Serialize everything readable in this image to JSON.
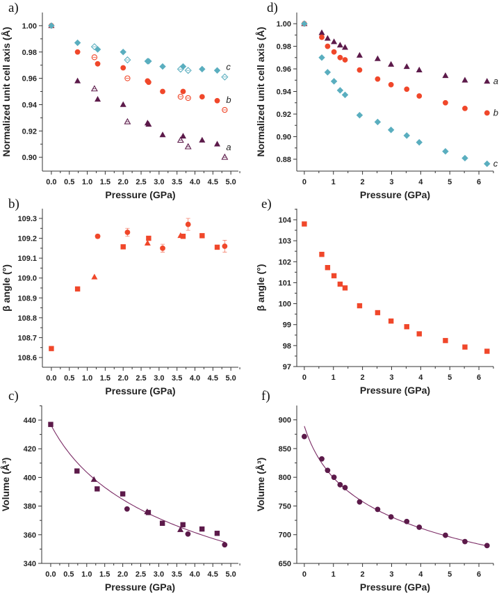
{
  "colors": {
    "a": "#5c1a4a",
    "b": "#f0472a",
    "c": "#5aaebf",
    "fit": "#7a2a64"
  },
  "chart_data": [
    {
      "id": "a",
      "panel_label": "a)",
      "type": "scatter",
      "xlabel": "Pressure (GPa)",
      "ylabel": "Normalized unit cell axis (Å)",
      "xlim": [
        -0.25,
        5.21
      ],
      "ylim": [
        0.8895,
        1.01
      ],
      "xticks": [
        "0.0",
        "0.5",
        "1.0",
        "1.5",
        "2.0",
        "2.5",
        "3.0",
        "3.5",
        "4.0",
        "4.5",
        "5.0"
      ],
      "yticks": [
        "0.90",
        "0.92",
        "0.94",
        "0.96",
        "0.98",
        "1.00"
      ],
      "x": [
        0,
        0.73,
        1.2,
        1.29,
        2.0,
        2.12,
        2.68,
        2.71,
        3.1,
        3.6,
        3.67,
        3.81,
        4.2,
        4.62,
        4.83
      ],
      "open_points": [
        2,
        5,
        9,
        11,
        14
      ],
      "series": [
        {
          "name": "a",
          "marker": "triangle",
          "color_key": "a",
          "values": [
            1.0,
            0.958,
            0.952,
            0.944,
            0.94,
            0.927,
            0.926,
            0.925,
            0.917,
            0.913,
            0.916,
            0.908,
            0.913,
            0.91,
            0.9
          ]
        },
        {
          "name": "b",
          "marker": "circle",
          "color_key": "b",
          "values": [
            1.0,
            0.98,
            0.976,
            0.971,
            0.968,
            0.96,
            0.958,
            0.957,
            0.95,
            0.946,
            0.95,
            0.945,
            0.946,
            0.943,
            0.936
          ]
        },
        {
          "name": "c",
          "marker": "diamond",
          "color_key": "c",
          "values": [
            1.0,
            0.987,
            0.984,
            0.982,
            0.98,
            0.974,
            0.973,
            0.973,
            0.969,
            0.967,
            0.969,
            0.966,
            0.967,
            0.966,
            0.961
          ]
        }
      ]
    },
    {
      "id": "d",
      "panel_label": "d)",
      "type": "scatter",
      "xlabel": "Pressure (GPa)",
      "ylabel": "Normalized unit cell axis (Å)",
      "xlim": [
        -0.26,
        6.5
      ],
      "ylim": [
        0.8695,
        1.0099
      ],
      "xticks": [
        "0",
        "1",
        "2",
        "3",
        "4",
        "5",
        "6"
      ],
      "yticks": [
        "0.88",
        "0.90",
        "0.92",
        "0.94",
        "0.96",
        "0.98",
        "1.00"
      ],
      "x": [
        0,
        0.6,
        0.8,
        1.02,
        1.23,
        1.4,
        1.9,
        2.52,
        2.98,
        3.52,
        3.95,
        4.85,
        5.52,
        6.28
      ],
      "open_points": [],
      "series": [
        {
          "name": "a",
          "marker": "triangle",
          "color_key": "a",
          "values": [
            1.0,
            0.992,
            0.987,
            0.984,
            0.981,
            0.979,
            0.972,
            0.969,
            0.964,
            0.962,
            0.959,
            0.954,
            0.95,
            0.949
          ]
        },
        {
          "name": "b",
          "marker": "circle",
          "color_key": "b",
          "values": [
            1.0,
            0.988,
            0.98,
            0.975,
            0.97,
            0.968,
            0.959,
            0.951,
            0.946,
            0.942,
            0.936,
            0.93,
            0.925,
            0.921
          ]
        },
        {
          "name": "c",
          "marker": "diamond",
          "color_key": "c",
          "values": [
            1.0,
            0.97,
            0.957,
            0.949,
            0.941,
            0.937,
            0.919,
            0.913,
            0.906,
            0.901,
            0.895,
            0.887,
            0.881,
            0.876
          ]
        }
      ]
    },
    {
      "id": "b",
      "panel_label": "b)",
      "type": "scatter",
      "xlabel": "Pressure (GPa)",
      "ylabel": "β angle (°)",
      "xlim": [
        -0.25,
        5.21
      ],
      "ylim": [
        108.551,
        109.349
      ],
      "xticks": [
        "0.0",
        "0.5",
        "1.0",
        "1.5",
        "2.0",
        "2.5",
        "3.0",
        "3.5",
        "4.0",
        "4.5",
        "5.0"
      ],
      "yticks": [
        "108.6",
        "108.7",
        "108.8",
        "108.9",
        "109.0",
        "109.1",
        "109.2",
        "109.3"
      ],
      "x": [
        0,
        0.73,
        1.2,
        1.29,
        2.0,
        2.12,
        2.68,
        2.71,
        3.1,
        3.6,
        3.67,
        3.81,
        4.2,
        4.62,
        4.83
      ],
      "open_points": [],
      "series": [
        {
          "name": "beta",
          "color_key": "b",
          "markers": [
            "square",
            "square",
            "triangle",
            "circle",
            "square",
            "circle",
            "triangle",
            "square",
            "circle",
            "triangle",
            "square",
            "circle",
            "square",
            "square",
            "circle"
          ],
          "values": [
            108.645,
            108.945,
            109.005,
            109.21,
            109.157,
            109.23,
            109.175,
            109.2,
            109.15,
            109.213,
            109.21,
            109.27,
            109.213,
            109.155,
            109.16
          ],
          "errors": [
            0,
            0,
            0,
            0.01,
            0,
            0.02,
            0,
            0,
            0.02,
            0,
            0,
            0.03,
            0,
            0,
            0.03
          ]
        }
      ]
    },
    {
      "id": "e",
      "panel_label": "e)",
      "type": "scatter",
      "xlabel": "Pressure (GPa)",
      "ylabel": "β angle (°)",
      "xlim": [
        -0.26,
        6.5
      ],
      "ylim": [
        97,
        104.53
      ],
      "xticks": [
        "0",
        "1",
        "2",
        "3",
        "4",
        "5",
        "6"
      ],
      "yticks": [
        "97",
        "98",
        "99",
        "100",
        "101",
        "102",
        "103",
        "104"
      ],
      "x": [
        0,
        0.6,
        0.8,
        1.02,
        1.23,
        1.4,
        1.9,
        2.52,
        2.98,
        3.52,
        3.95,
        4.85,
        5.52,
        6.28
      ],
      "open_points": [],
      "series": [
        {
          "name": "beta",
          "marker": "square",
          "color_key": "b",
          "values": [
            103.8,
            102.35,
            101.72,
            101.33,
            100.93,
            100.75,
            99.9,
            99.57,
            99.17,
            98.9,
            98.56,
            98.24,
            97.93,
            97.73
          ]
        }
      ]
    },
    {
      "id": "c",
      "panel_label": "c)",
      "type": "scatter",
      "xlabel": "Pressure (GPa)",
      "ylabel": "Volume (Å³)",
      "xlim": [
        -0.25,
        5.21
      ],
      "ylim": [
        340,
        450.2
      ],
      "xticks": [
        "0.0",
        "0.5",
        "1.0",
        "1.5",
        "2.0",
        "2.5",
        "3.0",
        "3.5",
        "4.0",
        "4.5",
        "5.0"
      ],
      "yticks": [
        "340",
        "360",
        "380",
        "400",
        "420",
        "440"
      ],
      "x": [
        0,
        0.73,
        1.2,
        1.29,
        2.0,
        2.12,
        2.68,
        2.71,
        3.1,
        3.6,
        3.67,
        3.81,
        4.2,
        4.62,
        4.83
      ],
      "open_points": [],
      "series": [
        {
          "name": "V",
          "color_key": "a",
          "markers": [
            "square",
            "square",
            "triangle",
            "square",
            "square",
            "circle",
            "triangle",
            "square",
            "square",
            "triangle",
            "square",
            "circle",
            "square",
            "square",
            "circle"
          ],
          "values": [
            437,
            404.5,
            398.5,
            392,
            388.5,
            378,
            376,
            375.5,
            368,
            363.5,
            367,
            360.5,
            364,
            361,
            353
          ]
        }
      ],
      "fit": {
        "model": "murnaghan",
        "V0": 437,
        "K0": 9.0,
        "Kp": 8,
        "xrange": [
          0,
          4.85
        ]
      }
    },
    {
      "id": "f",
      "panel_label": "f)",
      "type": "scatter",
      "xlabel": "Pressure (GPa)",
      "ylabel": "Volume (Å³)",
      "xlim": [
        -0.26,
        6.5
      ],
      "ylim": [
        650,
        925
      ],
      "xticks": [
        "0",
        "1",
        "2",
        "3",
        "4",
        "5",
        "6"
      ],
      "yticks": [
        "650",
        "700",
        "750",
        "800",
        "850",
        "900"
      ],
      "x": [
        0,
        0.6,
        0.8,
        1.02,
        1.23,
        1.4,
        1.9,
        2.52,
        2.98,
        3.52,
        3.95,
        4.85,
        5.52,
        6.28
      ],
      "open_points": [],
      "series": [
        {
          "name": "V",
          "marker": "circle",
          "color_key": "a",
          "values": [
            871,
            832,
            812,
            800,
            787,
            782,
            757,
            744,
            731,
            723,
            713,
            699,
            688,
            681
          ]
        }
      ],
      "fit": {
        "model": "murnaghan",
        "V0": 889,
        "K0": 5.6,
        "Kp": 9,
        "xrange": [
          0,
          6.28
        ]
      }
    }
  ]
}
